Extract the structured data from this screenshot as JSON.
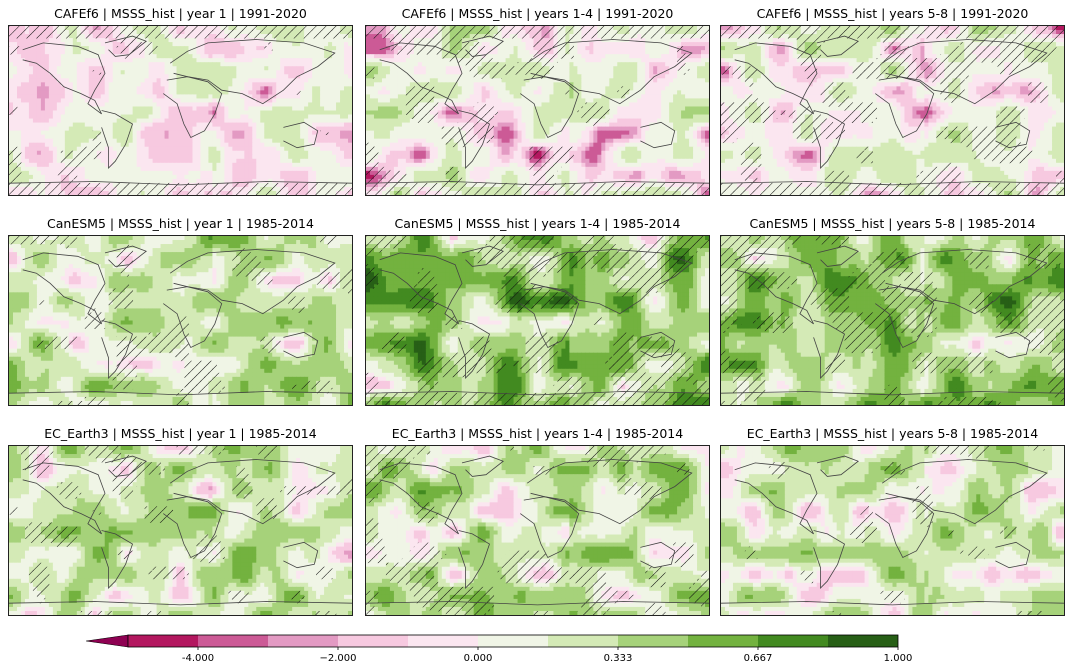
{
  "panels": [
    {
      "title": "CAFEf6 | MSSS_hist | year 1 | 1991-2020",
      "seed": 11,
      "greenBias": 0.3,
      "pinkBias": 0.55,
      "darkPink": 0.15,
      "hatch": 0.18,
      "hatchPoleTop": true,
      "hatchPoleBottom": true
    },
    {
      "title": "CAFEf6 | MSSS_hist | years 1-4 | 1991-2020",
      "seed": 23,
      "greenBias": 0.35,
      "pinkBias": 0.45,
      "darkPink": 0.35,
      "hatch": 0.3,
      "hatchPoleTop": true,
      "hatchPoleBottom": true
    },
    {
      "title": "CAFEf6 | MSSS_hist | years 5-8 | 1991-2020",
      "seed": 37,
      "greenBias": 0.35,
      "pinkBias": 0.45,
      "darkPink": 0.3,
      "hatch": 0.35,
      "hatchPoleTop": true,
      "hatchPoleBottom": true
    },
    {
      "title": "CanESM5 | MSSS_hist | year 1 | 1985-2014",
      "seed": 41,
      "greenBias": 0.6,
      "pinkBias": 0.25,
      "darkPink": 0.05,
      "hatch": 0.22,
      "hatchPoleTop": false,
      "hatchPoleBottom": false
    },
    {
      "title": "CanESM5 | MSSS_hist | years 1-4 | 1985-2014",
      "seed": 53,
      "greenBias": 0.8,
      "pinkBias": 0.12,
      "darkPink": 0.05,
      "hatch": 0.4,
      "hatchPoleTop": false,
      "hatchPoleBottom": true
    },
    {
      "title": "CanESM5 | MSSS_hist | years 5-8 | 1985-2014",
      "seed": 67,
      "greenBias": 0.75,
      "pinkBias": 0.15,
      "darkPink": 0.05,
      "hatch": 0.38,
      "hatchPoleTop": false,
      "hatchPoleBottom": false
    },
    {
      "title": "EC_Earth3 | MSSS_hist | year 1 | 1985-2014",
      "seed": 71,
      "greenBias": 0.55,
      "pinkBias": 0.3,
      "darkPink": 0.05,
      "hatch": 0.25,
      "hatchPoleTop": false,
      "hatchPoleBottom": false
    },
    {
      "title": "EC_Earth3 | MSSS_hist | years 1-4 | 1985-2014",
      "seed": 83,
      "greenBias": 0.6,
      "pinkBias": 0.28,
      "darkPink": 0.08,
      "hatch": 0.3,
      "hatchPoleTop": false,
      "hatchPoleBottom": false
    },
    {
      "title": "EC_Earth3 | MSSS_hist | years 5-8 | 1985-2014",
      "seed": 97,
      "greenBias": 0.5,
      "pinkBias": 0.35,
      "darkPink": 0.08,
      "hatch": 0.22,
      "hatchPoleTop": false,
      "hatchPoleBottom": false
    }
  ],
  "colorbar": {
    "colors": [
      "#b3175f",
      "#cc5a96",
      "#e39ac3",
      "#f7c9e0",
      "#fbe6f0",
      "#f0f5e6",
      "#d4eab6",
      "#a6d27a",
      "#73b23f",
      "#428a20",
      "#275f16"
    ],
    "extend_color": "#8e0152",
    "tick_labels": [
      "-4.000",
      "−2.000",
      "0.000",
      "0.333",
      "0.667",
      "1.000"
    ],
    "tick_boundaries": [
      1,
      3,
      5,
      7,
      9,
      11
    ]
  },
  "chart_data": {
    "type": "heatmap",
    "variable": "MSSS_hist",
    "panels": [
      {
        "model": "CAFEf6",
        "lead": "year 1",
        "period": "1991-2020"
      },
      {
        "model": "CAFEf6",
        "lead": "years 1-4",
        "period": "1991-2020"
      },
      {
        "model": "CAFEf6",
        "lead": "years 5-8",
        "period": "1991-2020"
      },
      {
        "model": "CanESM5",
        "lead": "year 1",
        "period": "1985-2014"
      },
      {
        "model": "CanESM5",
        "lead": "years 1-4",
        "period": "1985-2014"
      },
      {
        "model": "CanESM5",
        "lead": "years 5-8",
        "period": "1985-2014"
      },
      {
        "model": "EC_Earth3",
        "lead": "year 1",
        "period": "1985-2014"
      },
      {
        "model": "EC_Earth3",
        "lead": "years 1-4",
        "period": "1985-2014"
      },
      {
        "model": "EC_Earth3",
        "lead": "years 5-8",
        "period": "1985-2014"
      }
    ],
    "colorbar_levels": [
      -5,
      -4,
      -3,
      -2,
      -1,
      0,
      0.1667,
      0.333,
      0.5,
      0.667,
      0.833,
      1.0
    ],
    "colorbar_ticks": [
      -4,
      -2,
      0,
      0.333,
      0.667,
      1.0
    ],
    "colorbar_extend": "min"
  }
}
